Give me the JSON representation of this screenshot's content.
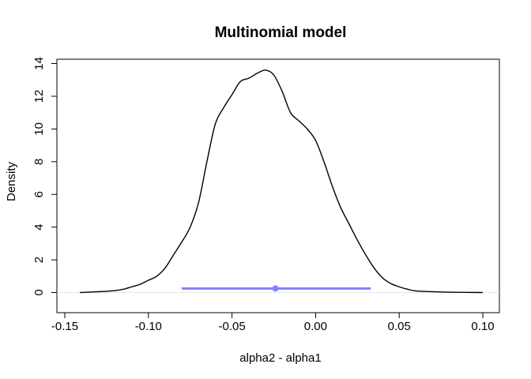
{
  "chart_data": {
    "type": "line",
    "title": "Multinomial model",
    "xlabel": "alpha2 - alpha1",
    "ylabel": "Density",
    "xlim": [
      -0.15,
      0.1
    ],
    "ylim": [
      0,
      14
    ],
    "x_ticks": [
      -0.15,
      -0.1,
      -0.05,
      0.0,
      0.05,
      0.1
    ],
    "x_tick_labels": [
      "-0.15",
      "-0.10",
      "-0.05",
      "0.00",
      "0.05",
      "0.10"
    ],
    "y_ticks": [
      0,
      2,
      4,
      6,
      8,
      10,
      12,
      14
    ],
    "y_tick_labels": [
      "0",
      "2",
      "4",
      "6",
      "8",
      "10",
      "12",
      "14"
    ],
    "grid": false,
    "series": [
      {
        "kind": "density",
        "color": "#000000",
        "x": [
          -0.141,
          -0.13,
          -0.12,
          -0.115,
          -0.11,
          -0.105,
          -0.1,
          -0.095,
          -0.09,
          -0.085,
          -0.08,
          -0.075,
          -0.07,
          -0.065,
          -0.06,
          -0.055,
          -0.05,
          -0.045,
          -0.04,
          -0.035,
          -0.03,
          -0.025,
          -0.02,
          -0.015,
          -0.01,
          -0.005,
          0.0,
          0.005,
          0.01,
          0.015,
          0.02,
          0.025,
          0.03,
          0.035,
          0.04,
          0.045,
          0.05,
          0.055,
          0.06,
          0.07,
          0.08,
          0.09,
          0.1
        ],
        "y": [
          0.0,
          0.05,
          0.12,
          0.2,
          0.35,
          0.5,
          0.75,
          1.0,
          1.5,
          2.3,
          3.1,
          4.0,
          5.5,
          8.0,
          10.3,
          11.3,
          12.1,
          12.9,
          13.1,
          13.4,
          13.6,
          13.3,
          12.3,
          11.0,
          10.5,
          10.0,
          9.3,
          8.0,
          6.5,
          5.2,
          4.2,
          3.2,
          2.3,
          1.5,
          0.9,
          0.55,
          0.35,
          0.2,
          0.1,
          0.05,
          0.02,
          0.01,
          0.0
        ]
      },
      {
        "kind": "interval",
        "color": "#8080ff",
        "low": -0.08,
        "high": 0.033,
        "point": -0.024,
        "y": 0.25
      }
    ]
  }
}
